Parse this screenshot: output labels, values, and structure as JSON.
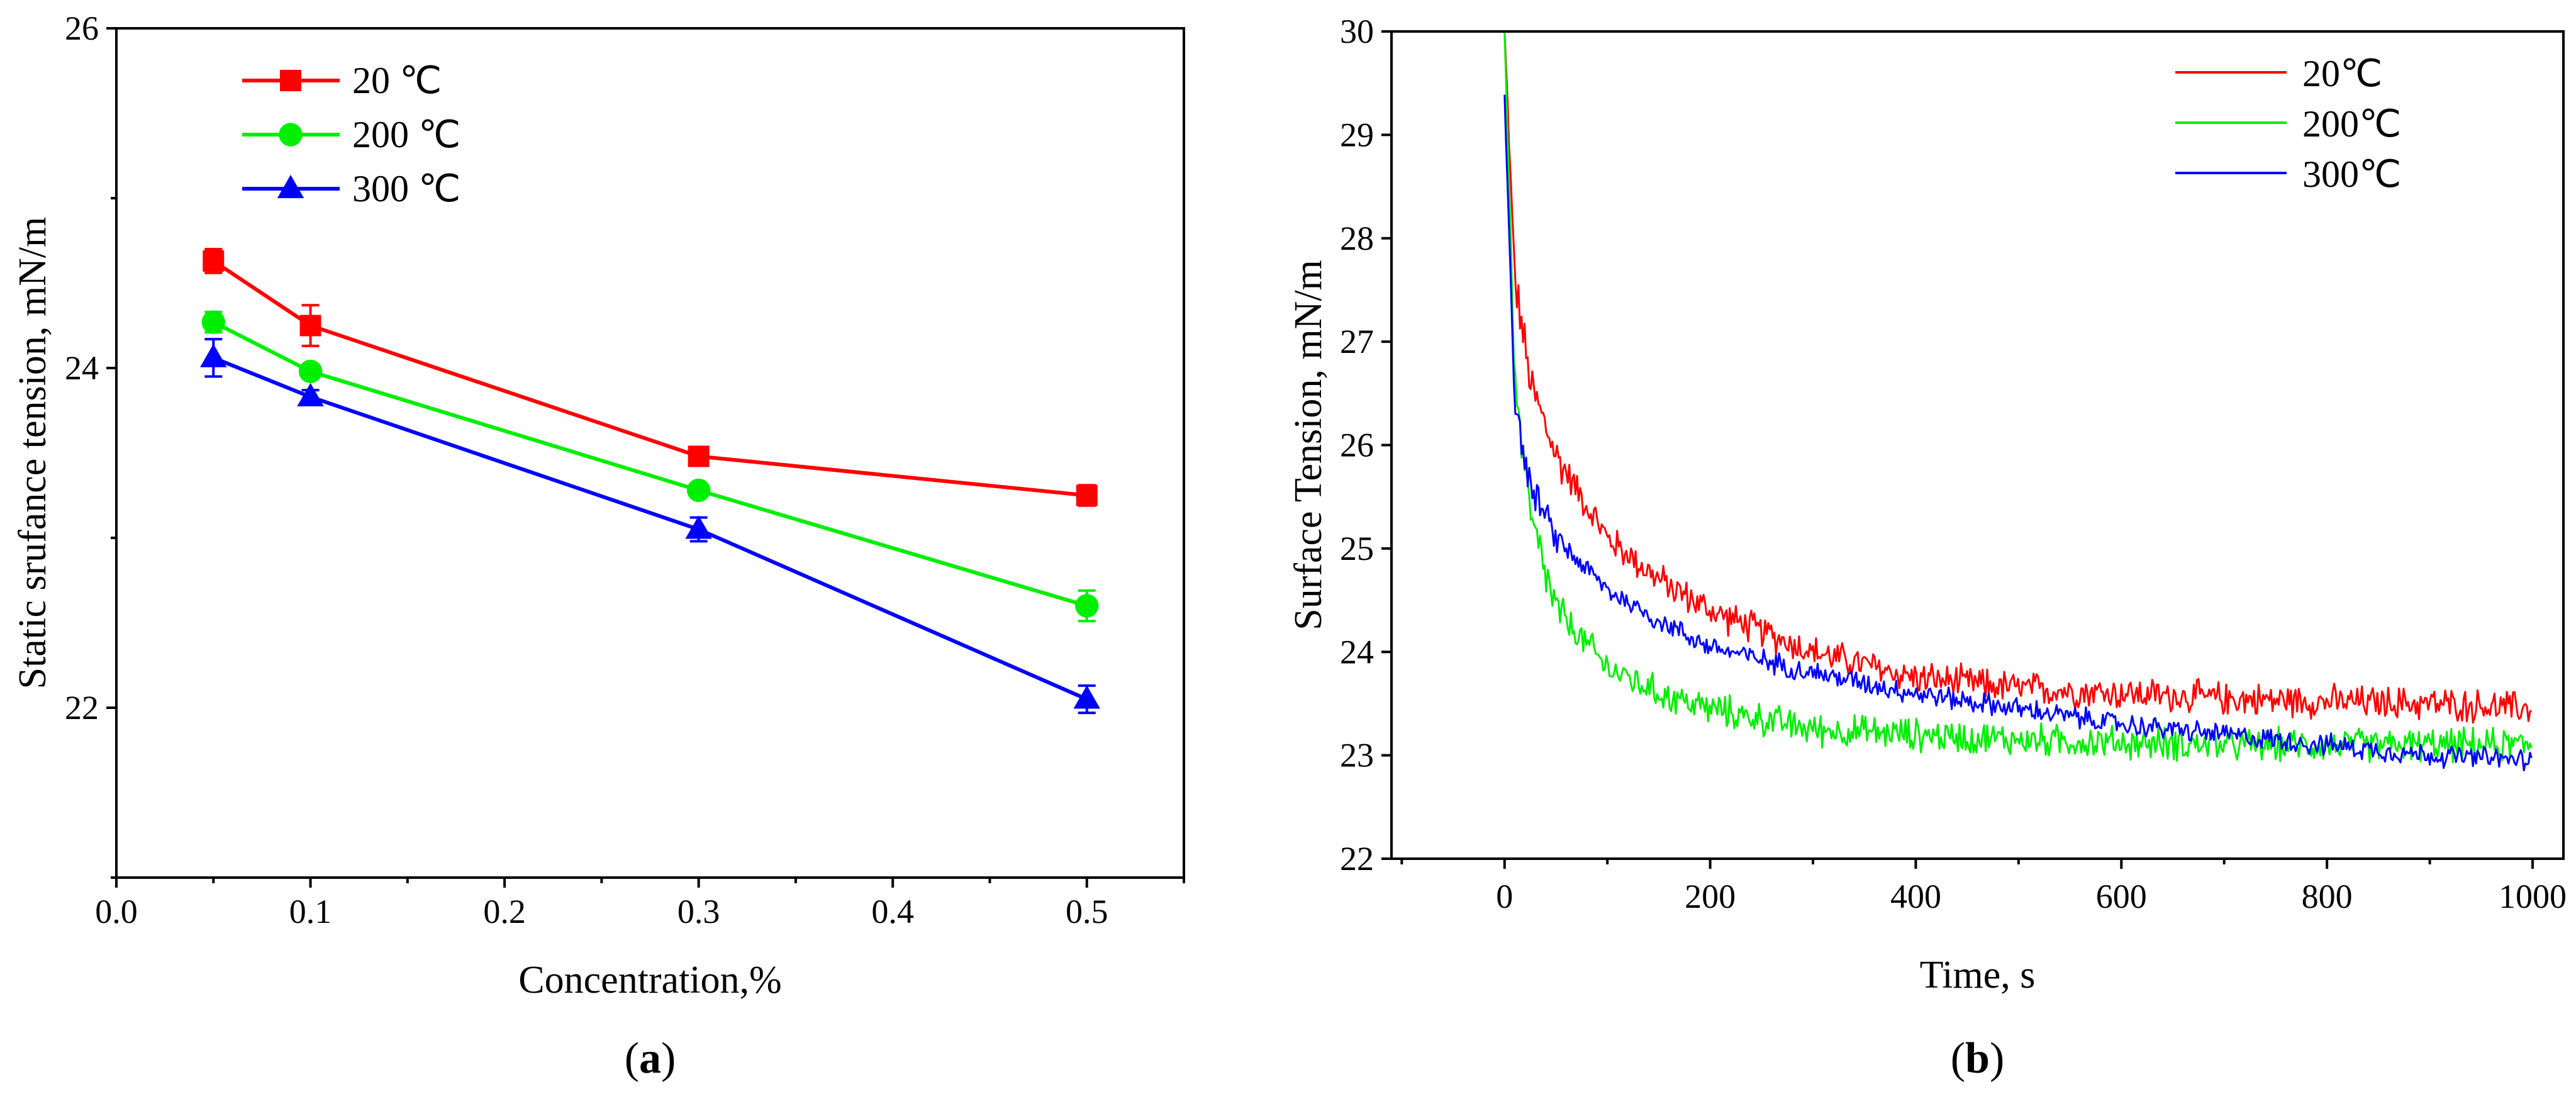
{
  "chart_data": [
    {
      "panel": "a",
      "panel_label": {
        "open": "(",
        "letter": "a",
        "close": ")"
      },
      "type": "line",
      "title": "",
      "xlabel": "Concentration,%",
      "ylabel": "Static srufance tension, mN/m",
      "xlim": [
        0.0,
        0.55
      ],
      "ylim": [
        21.0,
        26.0
      ],
      "xticks": [
        0.0,
        0.1,
        0.2,
        0.3,
        0.4,
        0.5
      ],
      "xtick_labels": [
        "0.0",
        "0.1",
        "0.2",
        "0.3",
        "0.4",
        "0.5"
      ],
      "yticks": [
        22,
        24,
        26
      ],
      "ytick_labels": [
        "22",
        "24",
        "26"
      ],
      "legend_position": "top-left",
      "x": [
        0.05,
        0.1,
        0.3,
        0.5
      ],
      "series": [
        {
          "name": "20 ℃",
          "color": "#ff0000",
          "marker": "square",
          "values": [
            24.63,
            24.25,
            23.48,
            23.25
          ],
          "errors": [
            0.07,
            0.12,
            0.05,
            0.06
          ]
        },
        {
          "name": "200 ℃",
          "color": "#00ee00",
          "marker": "circle",
          "values": [
            24.27,
            23.98,
            23.28,
            22.6
          ],
          "errors": [
            0.06,
            0.04,
            0.04,
            0.09
          ]
        },
        {
          "name": "300 ℃",
          "color": "#0000ff",
          "marker": "triangle",
          "values": [
            24.06,
            23.83,
            23.05,
            22.05
          ],
          "errors": [
            0.11,
            0.04,
            0.07,
            0.08
          ]
        }
      ]
    },
    {
      "panel": "b",
      "panel_label": {
        "open": "(",
        "letter": "b",
        "close": ")"
      },
      "type": "line",
      "title": "",
      "xlabel": "Time, s",
      "ylabel": "Surface Tension, mN/m",
      "xlim": [
        -110,
        1030
      ],
      "ylim": [
        22,
        30
      ],
      "xticks": [
        0,
        200,
        400,
        600,
        800,
        1000
      ],
      "xtick_labels": [
        "0",
        "200",
        "400",
        "600",
        "800",
        "1000"
      ],
      "yticks": [
        22,
        23,
        24,
        25,
        26,
        27,
        28,
        29,
        30
      ],
      "ytick_labels": [
        "22",
        "23",
        "24",
        "25",
        "26",
        "27",
        "28",
        "29",
        "30"
      ],
      "legend_position": "top-right",
      "series": [
        {
          "name": "20℃",
          "color": "#ff0000",
          "start": 30.0,
          "end": 23.5,
          "noise": 0.12,
          "x": [
            0,
            10,
            25,
            50,
            100,
            150,
            200,
            300,
            400,
            500,
            600,
            700,
            800,
            900,
            1000
          ],
          "values": [
            30.0,
            27.6,
            26.6,
            25.9,
            25.1,
            24.7,
            24.4,
            24.0,
            23.75,
            23.65,
            23.6,
            23.55,
            23.52,
            23.5,
            23.45
          ]
        },
        {
          "name": "200℃",
          "color": "#00ee00",
          "start": 30.0,
          "end": 23.1,
          "noise": 0.12,
          "x": [
            0,
            10,
            25,
            50,
            100,
            150,
            200,
            300,
            400,
            500,
            600,
            700,
            800,
            900,
            1000
          ],
          "values": [
            30.0,
            26.6,
            25.3,
            24.4,
            23.85,
            23.6,
            23.45,
            23.25,
            23.2,
            23.15,
            23.12,
            23.1,
            23.1,
            23.1,
            23.1
          ]
        },
        {
          "name": "300℃",
          "color": "#0000ff",
          "start": 29.4,
          "end": 22.95,
          "noise": 0.08,
          "x": [
            0,
            10,
            25,
            50,
            100,
            150,
            200,
            300,
            400,
            500,
            600,
            700,
            800,
            900,
            1000
          ],
          "values": [
            29.4,
            26.4,
            25.6,
            25.1,
            24.6,
            24.3,
            24.05,
            23.8,
            23.6,
            23.45,
            23.3,
            23.2,
            23.1,
            23.0,
            22.95
          ]
        }
      ]
    }
  ]
}
